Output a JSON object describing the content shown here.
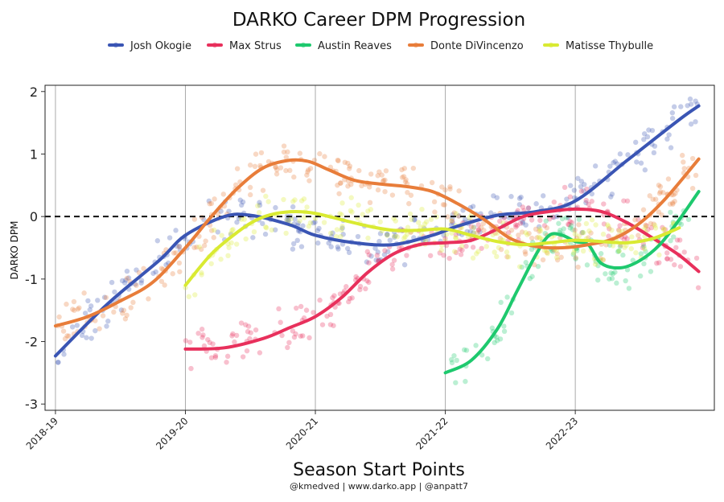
{
  "chart_data": {
    "type": "line",
    "title": "DARKO Career DPM Progression",
    "xlabel": "Season Start Points",
    "ylabel": "DARKO DPM",
    "caption": "@kmedved | www.darko.app | @anpatt7",
    "x_tick_labels": [
      "2018-19",
      "2019-20",
      "2020-21",
      "2021-22",
      "2022-23"
    ],
    "x_tick_positions": [
      0,
      1,
      2,
      3,
      4
    ],
    "xlim": [
      -0.08,
      5.07
    ],
    "ylim": [
      -3.1,
      2.1
    ],
    "y_ticks": [
      -3,
      -2,
      -1,
      0,
      1,
      2
    ],
    "reference_line": 0,
    "legend_position": "top",
    "grid": "vertical lines at season starts",
    "series": [
      {
        "name": "Josh Okogie",
        "color": "#3a55b4",
        "x": [
          0.0,
          0.4,
          0.8,
          1.0,
          1.3,
          1.5,
          1.8,
          2.0,
          2.3,
          2.6,
          2.9,
          3.1,
          3.4,
          3.7,
          4.0,
          4.4,
          4.8,
          4.95
        ],
        "y": [
          -2.23,
          -1.4,
          -0.7,
          -0.3,
          0.0,
          0.02,
          -0.13,
          -0.3,
          -0.42,
          -0.45,
          -0.3,
          -0.15,
          0.02,
          0.08,
          0.25,
          0.9,
          1.55,
          1.77
        ]
      },
      {
        "name": "Max Strus",
        "color": "#e8305c",
        "x": [
          1.0,
          1.3,
          1.6,
          1.8,
          2.0,
          2.2,
          2.4,
          2.6,
          2.8,
          3.0,
          3.2,
          3.4,
          3.6,
          3.8,
          4.0,
          4.2,
          4.4,
          4.6,
          4.8,
          4.95
        ],
        "y": [
          -2.12,
          -2.1,
          -1.95,
          -1.78,
          -1.6,
          -1.3,
          -0.9,
          -0.6,
          -0.45,
          -0.42,
          -0.38,
          -0.2,
          0.0,
          0.08,
          0.12,
          0.08,
          -0.1,
          -0.35,
          -0.62,
          -0.88
        ]
      },
      {
        "name": "Austin Reaves",
        "color": "#1ec96e",
        "x": [
          3.0,
          3.2,
          3.4,
          3.55,
          3.7,
          3.8,
          3.9,
          4.0,
          4.1,
          4.2,
          4.35,
          4.5,
          4.65,
          4.8,
          4.95
        ],
        "y": [
          -2.5,
          -2.3,
          -1.8,
          -1.2,
          -0.6,
          -0.3,
          -0.3,
          -0.4,
          -0.45,
          -0.75,
          -0.82,
          -0.7,
          -0.45,
          -0.05,
          0.4
        ]
      },
      {
        "name": "Donte DiVincenzo",
        "color": "#e87d3a",
        "x": [
          0.0,
          0.25,
          0.5,
          0.75,
          1.0,
          1.2,
          1.4,
          1.6,
          1.8,
          1.95,
          2.1,
          2.3,
          2.5,
          2.7,
          2.9,
          3.1,
          3.3,
          3.5,
          3.7,
          3.9,
          4.1,
          4.3,
          4.5,
          4.7,
          4.95
        ],
        "y": [
          -1.75,
          -1.6,
          -1.35,
          -1.05,
          -0.5,
          0.0,
          0.45,
          0.78,
          0.9,
          0.88,
          0.75,
          0.58,
          0.52,
          0.48,
          0.4,
          0.2,
          -0.05,
          -0.35,
          -0.48,
          -0.5,
          -0.45,
          -0.35,
          -0.1,
          0.3,
          0.92
        ]
      },
      {
        "name": "Matisse Thybulle",
        "color": "#d9ea32",
        "x": [
          1.0,
          1.2,
          1.4,
          1.55,
          1.7,
          1.85,
          2.0,
          2.2,
          2.4,
          2.6,
          2.8,
          3.0,
          3.2,
          3.4,
          3.6,
          3.8,
          4.0,
          4.2,
          4.4,
          4.6,
          4.8
        ],
        "y": [
          -1.1,
          -0.6,
          -0.25,
          -0.05,
          0.05,
          0.08,
          0.05,
          -0.05,
          -0.15,
          -0.22,
          -0.22,
          -0.2,
          -0.3,
          -0.4,
          -0.45,
          -0.42,
          -0.38,
          -0.4,
          -0.42,
          -0.35,
          -0.18
        ]
      }
    ]
  }
}
